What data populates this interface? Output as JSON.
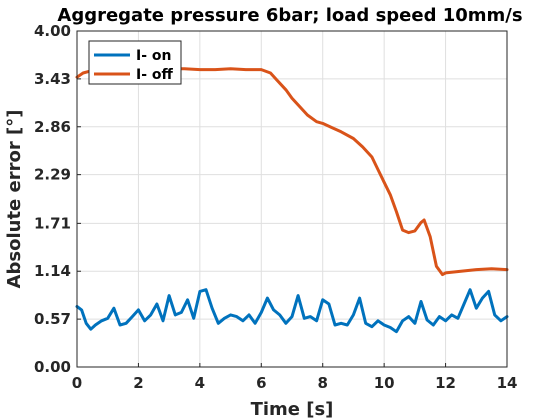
{
  "chart_data": {
    "type": "line",
    "title": "Aggregate pressure 6bar; load speed 10mm/s",
    "xlabel": "Time [s]",
    "ylabel": "Absolute error [°]",
    "xlim": [
      0,
      14
    ],
    "ylim": [
      0,
      4.0
    ],
    "x_ticks": [
      0,
      2,
      4,
      6,
      8,
      10,
      12,
      14
    ],
    "x_tick_labels": [
      "0",
      "2",
      "4",
      "6",
      "8",
      "10",
      "12",
      "14"
    ],
    "y_ticks": [
      0,
      0.57,
      1.14,
      1.71,
      2.29,
      2.86,
      3.43,
      4.0
    ],
    "y_tick_labels": [
      "0.00",
      "0.57",
      "1.14",
      "1.71",
      "2.29",
      "2.86",
      "3.43",
      "4.00"
    ],
    "grid": true,
    "legend_position": "top-left",
    "series": [
      {
        "name": "I- on",
        "color": "#0072bd",
        "x": [
          0,
          0.15,
          0.3,
          0.45,
          0.6,
          0.8,
          1.0,
          1.2,
          1.4,
          1.6,
          1.8,
          2.0,
          2.2,
          2.4,
          2.6,
          2.8,
          3.0,
          3.2,
          3.4,
          3.6,
          3.8,
          4.0,
          4.2,
          4.4,
          4.6,
          4.8,
          5.0,
          5.2,
          5.4,
          5.6,
          5.8,
          6.0,
          6.2,
          6.4,
          6.6,
          6.8,
          7.0,
          7.2,
          7.4,
          7.6,
          7.8,
          8.0,
          8.2,
          8.4,
          8.6,
          8.8,
          9.0,
          9.2,
          9.4,
          9.6,
          9.8,
          10.0,
          10.2,
          10.4,
          10.6,
          10.8,
          11.0,
          11.2,
          11.4,
          11.6,
          11.8,
          12.0,
          12.2,
          12.4,
          12.6,
          12.8,
          13.0,
          13.2,
          13.4,
          13.6,
          13.8,
          14.0
        ],
        "y": [
          0.72,
          0.68,
          0.52,
          0.45,
          0.5,
          0.55,
          0.58,
          0.7,
          0.5,
          0.52,
          0.6,
          0.68,
          0.55,
          0.62,
          0.75,
          0.55,
          0.85,
          0.62,
          0.65,
          0.8,
          0.58,
          0.9,
          0.92,
          0.7,
          0.52,
          0.58,
          0.62,
          0.6,
          0.55,
          0.62,
          0.52,
          0.65,
          0.82,
          0.68,
          0.62,
          0.52,
          0.6,
          0.85,
          0.58,
          0.6,
          0.55,
          0.8,
          0.75,
          0.5,
          0.52,
          0.5,
          0.62,
          0.82,
          0.52,
          0.48,
          0.55,
          0.5,
          0.47,
          0.42,
          0.55,
          0.6,
          0.52,
          0.78,
          0.56,
          0.5,
          0.6,
          0.55,
          0.62,
          0.58,
          0.75,
          0.92,
          0.7,
          0.82,
          0.9,
          0.62,
          0.55,
          0.6
        ]
      },
      {
        "name": "I- off",
        "color": "#d95319",
        "x": [
          0,
          0.2,
          0.4,
          0.6,
          1.0,
          1.5,
          2.0,
          2.5,
          3.0,
          3.5,
          4.0,
          4.5,
          5.0,
          5.5,
          6.0,
          6.3,
          6.5,
          6.8,
          7.0,
          7.2,
          7.5,
          7.8,
          8.0,
          8.3,
          8.6,
          9.0,
          9.3,
          9.6,
          9.8,
          10.0,
          10.2,
          10.4,
          10.6,
          10.8,
          11.0,
          11.2,
          11.3,
          11.5,
          11.7,
          11.9,
          12.0,
          12.5,
          13.0,
          13.5,
          14.0
        ],
        "y": [
          3.45,
          3.5,
          3.52,
          3.55,
          3.56,
          3.55,
          3.55,
          3.54,
          3.55,
          3.55,
          3.54,
          3.54,
          3.55,
          3.54,
          3.54,
          3.5,
          3.42,
          3.3,
          3.2,
          3.12,
          3.0,
          2.92,
          2.9,
          2.85,
          2.8,
          2.72,
          2.62,
          2.5,
          2.35,
          2.2,
          2.05,
          1.85,
          1.63,
          1.6,
          1.62,
          1.72,
          1.75,
          1.55,
          1.2,
          1.1,
          1.12,
          1.14,
          1.16,
          1.17,
          1.16
        ]
      }
    ]
  }
}
